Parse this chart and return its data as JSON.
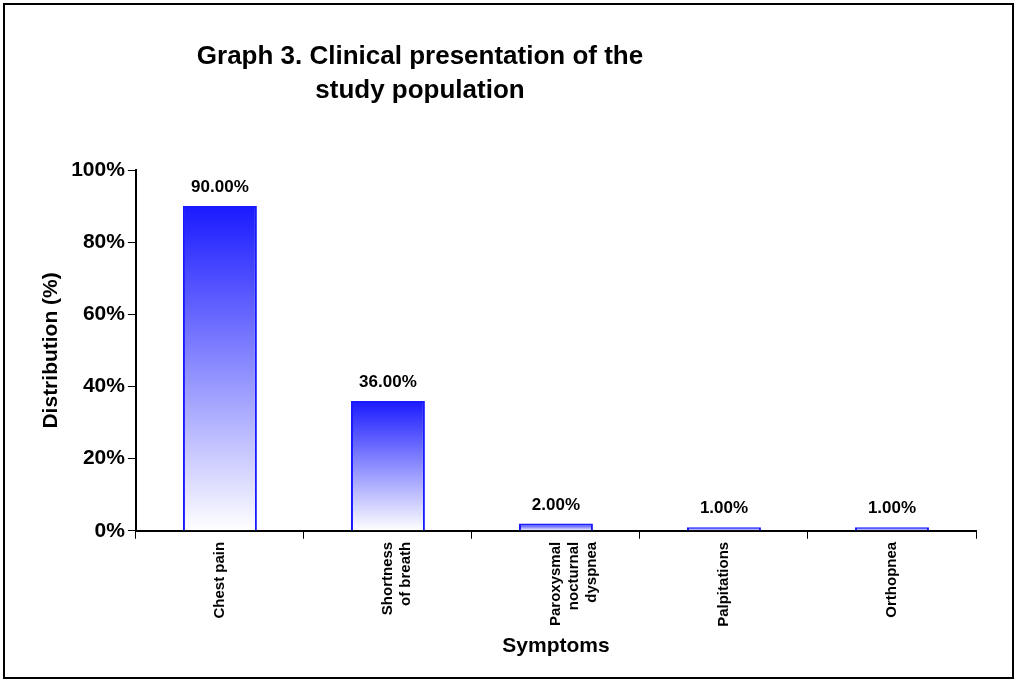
{
  "chart_data": {
    "type": "bar",
    "title": "Graph 3. Clinical presentation of the study population",
    "xlabel": "Symptoms",
    "ylabel": "Distribution (%)",
    "categories": [
      "Chest pain",
      "Shortness of breath",
      "Paroxysmal nocturnal dyspnea",
      "Palpitations",
      "Orthopnea"
    ],
    "values": [
      90,
      36,
      2,
      1,
      1
    ],
    "value_labels": [
      "90.00%",
      "36.00%",
      "2.00%",
      "1.00%",
      "1.00%"
    ],
    "color": "#1a1aff",
    "ylim": [
      0,
      100
    ],
    "yticks": [
      {
        "value": 0,
        "label": "0%"
      },
      {
        "value": 20,
        "label": "20%"
      },
      {
        "value": 40,
        "label": "40%"
      },
      {
        "value": 60,
        "label": "60%"
      },
      {
        "value": 80,
        "label": "80%"
      },
      {
        "value": 100,
        "label": "100%"
      }
    ],
    "grid": false,
    "legend": false
  }
}
